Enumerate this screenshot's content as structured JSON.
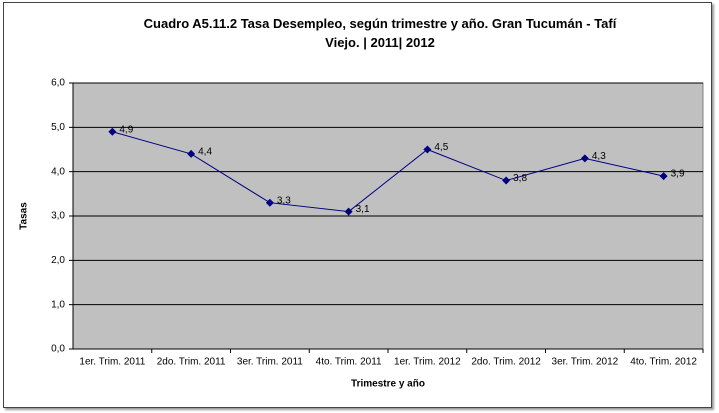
{
  "chart_data": {
    "type": "line",
    "title": "Cuadro A5.11.2 Tasa Desempleo, según trimestre y año. Gran Tucumán - Tafí Viejo. | 2011| 2012",
    "x_label": "Trimestre y año",
    "y_label": "Tasas",
    "categories": [
      "1er. Trim. 2011",
      "2do. Trim. 2011",
      "3er. Trim. 2011",
      "4to. Trim. 2011",
      "1er. Trim. 2012",
      "2do. Trim. 2012",
      "3er. Trim. 2012",
      "4to. Trim. 2012"
    ],
    "values": [
      4.9,
      4.4,
      3.3,
      3.1,
      4.5,
      3.8,
      4.3,
      3.9
    ],
    "value_labels": [
      "4,9",
      "4,4",
      "3,3",
      "3,1",
      "4,5",
      "3,8",
      "4,3",
      "3,9"
    ],
    "color": "#000080",
    "ylim": [
      0,
      6
    ],
    "yticks": [
      {
        "value": 0,
        "label": "0,0"
      },
      {
        "value": 1,
        "label": "1,0"
      },
      {
        "value": 2,
        "label": "2,0"
      },
      {
        "value": 3,
        "label": "3,0"
      },
      {
        "value": 4,
        "label": "4,0"
      },
      {
        "value": 5,
        "label": "5,0"
      },
      {
        "value": 6,
        "label": "6,0"
      }
    ],
    "grid": true
  }
}
